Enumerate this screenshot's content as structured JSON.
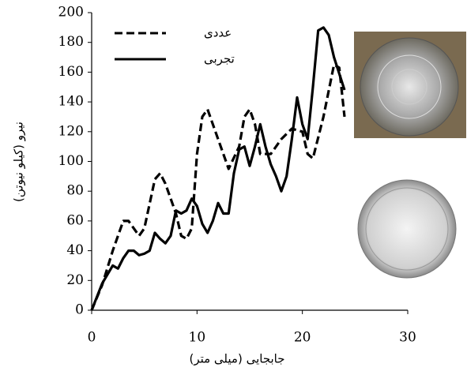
{
  "chart_data": {
    "type": "line",
    "x_label": "جابجایی (میلی متر)",
    "y_label": "نیرو (کیلو نیوتن)",
    "xlim": [
      0,
      30
    ],
    "xticks": [
      0,
      10,
      20,
      30
    ],
    "ylim": [
      0,
      200
    ],
    "yticks": [
      0,
      20,
      40,
      60,
      80,
      100,
      120,
      140,
      160,
      180,
      200
    ],
    "legend": "upper-left",
    "series": [
      {
        "name": "عددی",
        "color": "#000000",
        "style": "dashed",
        "x": [
          0,
          1,
          2,
          3,
          3.5,
          4.5,
          5,
          6,
          6.5,
          7,
          8,
          8.5,
          9,
          9.5,
          10,
          10.5,
          11,
          12,
          13,
          14,
          14.5,
          15,
          15.5,
          16,
          17,
          18,
          19,
          20,
          20.5,
          21,
          22,
          23,
          23.5,
          24
        ],
        "values": [
          0,
          17,
          40,
          60,
          60,
          50,
          55,
          88,
          92,
          85,
          65,
          50,
          48,
          55,
          105,
          130,
          135,
          115,
          95,
          110,
          130,
          135,
          125,
          105,
          105,
          115,
          122,
          120,
          105,
          102,
          130,
          165,
          163,
          130
        ]
      },
      {
        "name": "تجربی",
        "color": "#000000",
        "style": "solid",
        "x": [
          0,
          1,
          2,
          2.5,
          3,
          3.5,
          4,
          4.5,
          5,
          5.5,
          6,
          6.5,
          7,
          7.5,
          8,
          8.5,
          9,
          9.5,
          10,
          10.5,
          11,
          11.5,
          12,
          12.5,
          13,
          13.5,
          14,
          14.5,
          15,
          15.5,
          16,
          16.5,
          17,
          17.5,
          18,
          18.5,
          19,
          19.5,
          20,
          20.5,
          21,
          21.5,
          22,
          22.5,
          23,
          24
        ],
        "values": [
          0,
          18,
          30,
          28,
          35,
          40,
          40,
          37,
          38,
          40,
          52,
          48,
          45,
          50,
          67,
          65,
          67,
          75,
          70,
          58,
          52,
          60,
          72,
          65,
          65,
          92,
          108,
          110,
          97,
          110,
          125,
          110,
          98,
          90,
          80,
          90,
          115,
          143,
          125,
          115,
          150,
          188,
          190,
          185,
          170,
          148
        ]
      }
    ]
  }
}
